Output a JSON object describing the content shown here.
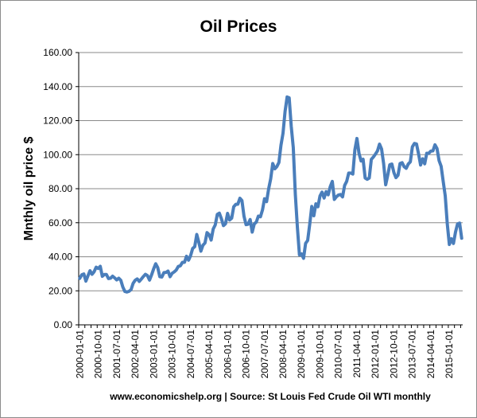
{
  "chart_data": {
    "type": "line",
    "title": "Oil Prices",
    "ylabel": "Mnthly oil price $",
    "xlabel": "",
    "source": "www.economicshelp.org | Source: St Louis Fed Crude Oil WTI monthly",
    "ylim": [
      0,
      160
    ],
    "yticks": [
      "0.00",
      "20.00",
      "40.00",
      "60.00",
      "80.00",
      "100.00",
      "120.00",
      "140.00",
      "160.00"
    ],
    "xticks": [
      "2000-01-01",
      "2000-10-01",
      "2001-07-01",
      "2002-04-01",
      "2003-01-01",
      "2003-10-01",
      "2004-07-01",
      "2005-04-01",
      "2006-01-01",
      "2006-10-01",
      "2007-07-01",
      "2008-04-01",
      "2009-01-01",
      "2009-10-01",
      "2010-07-01",
      "2011-04-01",
      "2012-01-01",
      "2012-10-01",
      "2013-07-01",
      "2014-04-01",
      "2015-01-01"
    ],
    "grid": true,
    "color": "#4a7ebb",
    "series": [
      {
        "x": [
          "2000-01",
          "2000-02",
          "2000-03",
          "2000-04",
          "2000-05",
          "2000-06",
          "2000-07",
          "2000-08",
          "2000-09",
          "2000-10",
          "2000-11",
          "2000-12",
          "2001-01",
          "2001-02",
          "2001-03",
          "2001-04",
          "2001-05",
          "2001-06",
          "2001-07",
          "2001-08",
          "2001-09",
          "2001-10",
          "2001-11",
          "2001-12",
          "2002-01",
          "2002-02",
          "2002-03",
          "2002-04",
          "2002-05",
          "2002-06",
          "2002-07",
          "2002-08",
          "2002-09",
          "2002-10",
          "2002-11",
          "2002-12",
          "2003-01",
          "2003-02",
          "2003-03",
          "2003-04",
          "2003-05",
          "2003-06",
          "2003-07",
          "2003-08",
          "2003-09",
          "2003-10",
          "2003-11",
          "2003-12",
          "2004-01",
          "2004-02",
          "2004-03",
          "2004-04",
          "2004-05",
          "2004-06",
          "2004-07",
          "2004-08",
          "2004-09",
          "2004-10",
          "2004-11",
          "2004-12",
          "2005-01",
          "2005-02",
          "2005-03",
          "2005-04",
          "2005-05",
          "2005-06",
          "2005-07",
          "2005-08",
          "2005-09",
          "2005-10",
          "2005-11",
          "2005-12",
          "2006-01",
          "2006-02",
          "2006-03",
          "2006-04",
          "2006-05",
          "2006-06",
          "2006-07",
          "2006-08",
          "2006-09",
          "2006-10",
          "2006-11",
          "2006-12",
          "2007-01",
          "2007-02",
          "2007-03",
          "2007-04",
          "2007-05",
          "2007-06",
          "2007-07",
          "2007-08",
          "2007-09",
          "2007-10",
          "2007-11",
          "2007-12",
          "2008-01",
          "2008-02",
          "2008-03",
          "2008-04",
          "2008-05",
          "2008-06",
          "2008-07",
          "2008-08",
          "2008-09",
          "2008-10",
          "2008-11",
          "2008-12",
          "2009-01",
          "2009-02",
          "2009-03",
          "2009-04",
          "2009-05",
          "2009-06",
          "2009-07",
          "2009-08",
          "2009-09",
          "2009-10",
          "2009-11",
          "2009-12",
          "2010-01",
          "2010-02",
          "2010-03",
          "2010-04",
          "2010-05",
          "2010-06",
          "2010-07",
          "2010-08",
          "2010-09",
          "2010-10",
          "2010-11",
          "2010-12",
          "2011-01",
          "2011-02",
          "2011-03",
          "2011-04",
          "2011-05",
          "2011-06",
          "2011-07",
          "2011-08",
          "2011-09",
          "2011-10",
          "2011-11",
          "2011-12",
          "2012-01",
          "2012-02",
          "2012-03",
          "2012-04",
          "2012-05",
          "2012-06",
          "2012-07",
          "2012-08",
          "2012-09",
          "2012-10",
          "2012-11",
          "2012-12",
          "2013-01",
          "2013-02",
          "2013-03",
          "2013-04",
          "2013-05",
          "2013-06",
          "2013-07",
          "2013-08",
          "2013-09",
          "2013-10",
          "2013-11",
          "2013-12",
          "2014-01",
          "2014-02",
          "2014-03",
          "2014-04",
          "2014-05",
          "2014-06",
          "2014-07",
          "2014-08",
          "2014-09",
          "2014-10",
          "2014-11",
          "2014-12",
          "2015-01",
          "2015-02",
          "2015-03",
          "2015-04",
          "2015-05",
          "2015-06",
          "2015-07"
        ],
        "values": [
          27.3,
          29.4,
          29.9,
          25.7,
          28.8,
          31.8,
          29.7,
          31.2,
          33.9,
          33.1,
          34.4,
          28.5,
          29.6,
          29.6,
          27.2,
          27.4,
          28.6,
          27.6,
          26.4,
          27.4,
          26.2,
          22.2,
          19.6,
          19.3,
          19.7,
          20.7,
          24.4,
          26.2,
          27.0,
          25.5,
          26.9,
          28.4,
          29.7,
          28.9,
          26.3,
          29.4,
          32.9,
          35.9,
          33.6,
          28.3,
          28.1,
          30.7,
          30.8,
          31.6,
          28.3,
          30.3,
          31.1,
          32.2,
          34.3,
          34.7,
          36.7,
          36.7,
          40.3,
          38.0,
          40.7,
          44.9,
          45.9,
          53.1,
          48.5,
          43.3,
          46.8,
          48.1,
          54.2,
          53.0,
          49.8,
          56.3,
          58.7,
          64.9,
          65.6,
          62.3,
          58.3,
          59.4,
          65.5,
          61.6,
          62.7,
          69.4,
          70.8,
          70.9,
          74.4,
          73.0,
          63.8,
          58.9,
          59.1,
          61.9,
          54.5,
          59.3,
          60.4,
          63.9,
          63.5,
          67.5,
          74.1,
          72.4,
          79.9,
          85.8,
          94.8,
          91.7,
          93.0,
          95.4,
          105.5,
          112.6,
          125.4,
          133.9,
          133.4,
          116.7,
          104.1,
          76.6,
          57.3,
          41.1,
          41.7,
          39.1,
          47.9,
          49.6,
          59.0,
          69.6,
          64.1,
          71.1,
          69.4,
          75.7,
          78.0,
          74.5,
          78.3,
          76.4,
          81.2,
          84.3,
          73.7,
          75.3,
          76.3,
          76.6,
          75.2,
          81.9,
          84.3,
          89.2,
          89.2,
          88.6,
          102.9,
          109.5,
          100.9,
          96.3,
          97.3,
          86.3,
          85.5,
          86.3,
          97.2,
          98.6,
          100.3,
          102.2,
          106.2,
          103.3,
          94.7,
          82.3,
          87.9,
          94.1,
          94.5,
          89.5,
          86.5,
          87.9,
          94.8,
          95.3,
          92.9,
          92.0,
          94.5,
          95.8,
          104.6,
          106.6,
          106.3,
          100.5,
          93.9,
          97.6,
          94.6,
          100.8,
          100.8,
          102.1,
          102.2,
          105.8,
          103.6,
          96.5,
          93.2,
          84.4,
          75.8,
          59.3,
          47.2,
          50.6,
          47.8,
          54.5,
          59.3,
          59.8,
          50.9
        ]
      }
    ]
  }
}
